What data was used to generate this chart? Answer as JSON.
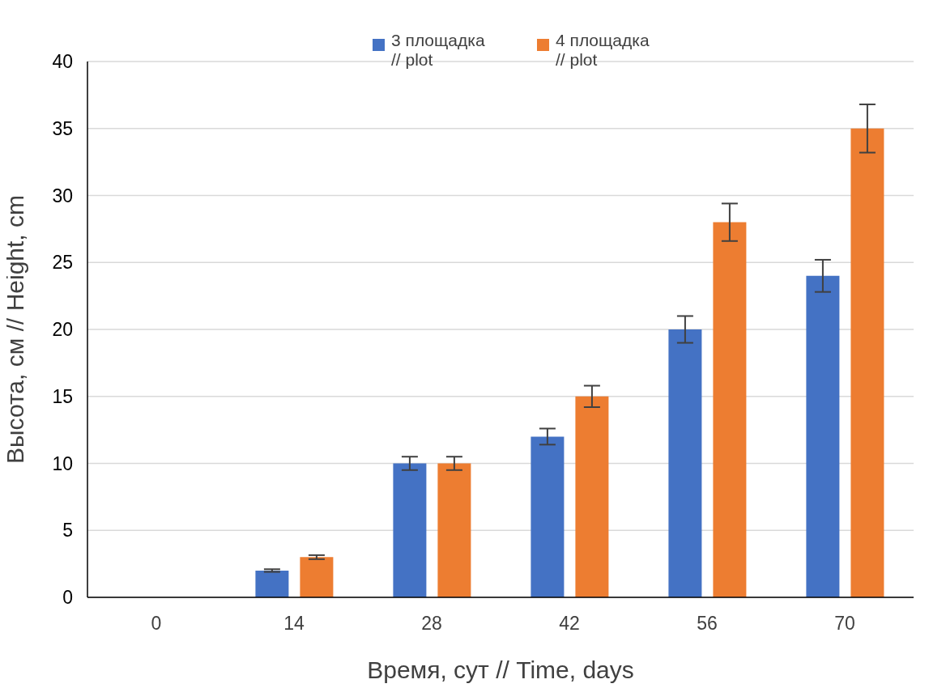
{
  "chart_data": {
    "type": "bar",
    "xlabel": "Время, сут //  Time, days",
    "ylabel": "Высота, см // Height, cm",
    "categories": [
      "0",
      "14",
      "28",
      "42",
      "56",
      "70"
    ],
    "series": [
      {
        "name": "3 площадка // plot",
        "color": "#4472c4",
        "values": [
          0,
          2,
          10,
          12,
          20,
          24
        ],
        "errors": [
          null,
          0.1,
          0.5,
          0.6,
          1,
          1.2
        ]
      },
      {
        "name": "4 площадка // plot",
        "color": "#ed7d31",
        "values": [
          0,
          3,
          10,
          15,
          28,
          35
        ],
        "errors": [
          null,
          0.15,
          0.5,
          0.8,
          1.4,
          1.8
        ]
      }
    ],
    "ylim": [
      0,
      40
    ],
    "yticks": [
      0,
      5,
      10,
      15,
      20,
      25,
      30,
      35,
      40
    ],
    "grid": "y",
    "legend": "top"
  }
}
